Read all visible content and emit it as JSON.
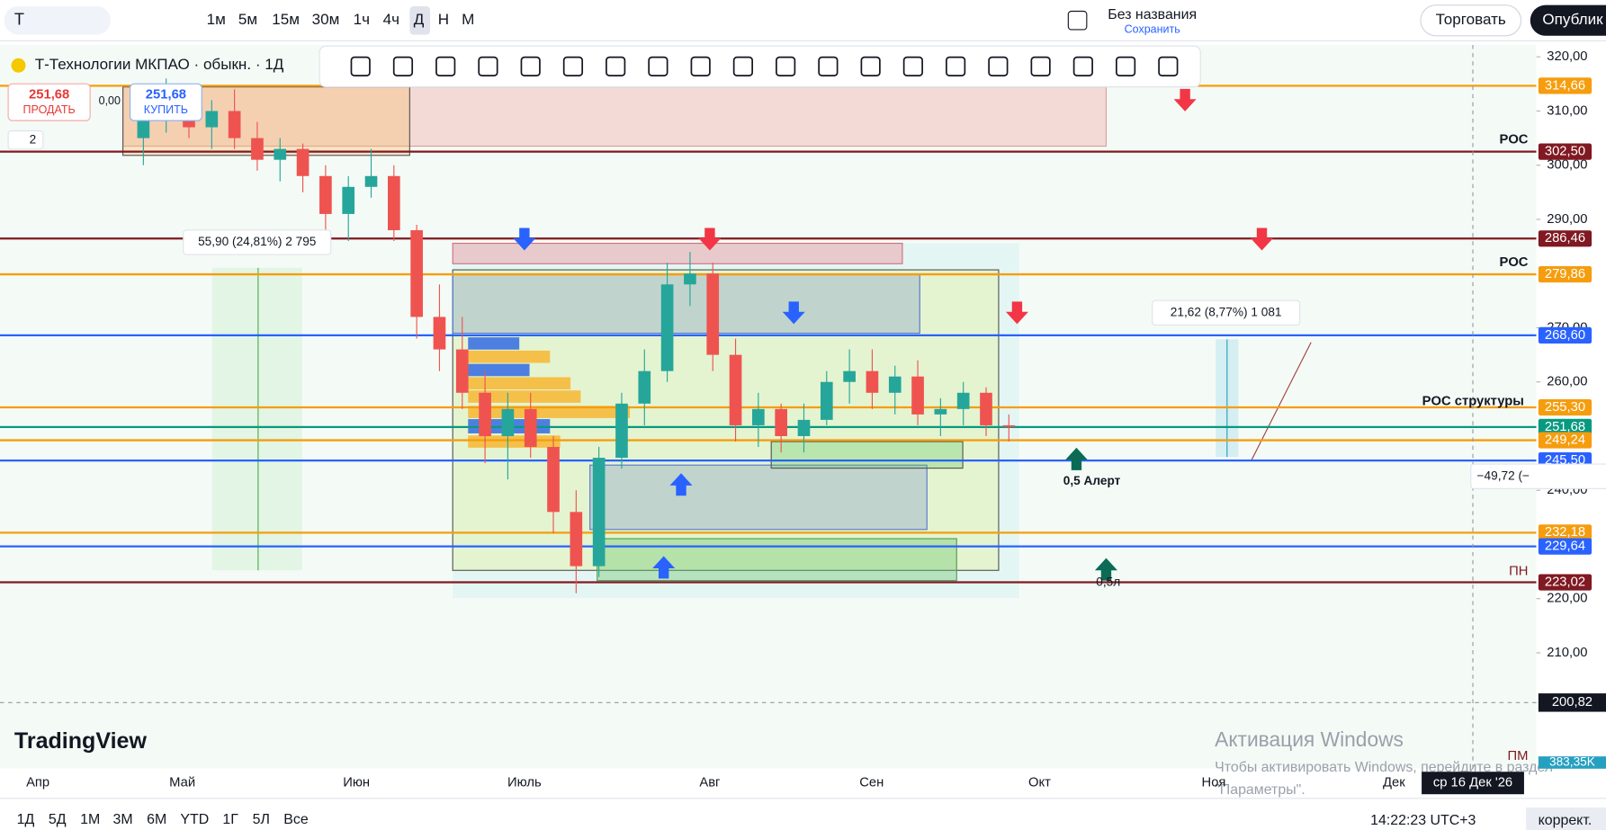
{
  "toolbar": {
    "symbol_search": "Т",
    "intervals": [
      "1м",
      "5м",
      "15м",
      "30м",
      "1ч",
      "4ч",
      "Д",
      "Н",
      "М"
    ],
    "layout_name": "Без названия",
    "save": "Сохранить",
    "trade": "Торговать",
    "publish": "Опублик"
  },
  "legend": {
    "symbol": "Т-Технологии МКПАО · обыкн. · 1Д",
    "sell_price": "251,68",
    "sell": "ПРОДАТЬ",
    "spread": "0,00",
    "buy_price": "251,68",
    "buy": "КУПИТЬ",
    "indicators_count": "2"
  },
  "chart_data": {
    "type": "candlestick",
    "up_color": "#26a69a",
    "down_color": "#ef5350",
    "candles": [
      [
        305,
        312,
        300,
        310
      ],
      [
        310,
        316,
        306,
        313
      ],
      [
        313,
        315,
        305,
        307
      ],
      [
        307,
        312,
        303,
        310
      ],
      [
        310,
        314,
        303,
        305
      ],
      [
        305,
        308,
        299,
        301
      ],
      [
        301,
        305,
        297,
        303
      ],
      [
        303,
        304,
        295,
        298
      ],
      [
        298,
        300,
        288,
        291
      ],
      [
        291,
        298,
        286,
        296
      ],
      [
        296,
        303,
        294,
        298
      ],
      [
        298,
        300,
        286,
        288
      ],
      [
        288,
        289,
        268,
        272
      ],
      [
        272,
        278,
        262,
        266
      ],
      [
        266,
        272,
        255,
        258
      ],
      [
        258,
        262,
        245,
        250
      ],
      [
        250,
        258,
        242,
        255
      ],
      [
        255,
        258,
        246,
        248
      ],
      [
        248,
        250,
        232,
        236
      ],
      [
        236,
        240,
        221,
        226
      ],
      [
        226,
        248,
        224,
        246
      ],
      [
        246,
        258,
        244,
        256
      ],
      [
        256,
        266,
        252,
        262
      ],
      [
        262,
        282,
        260,
        278
      ],
      [
        278,
        284,
        274,
        280
      ],
      [
        280,
        282,
        262,
        265
      ],
      [
        265,
        268,
        249,
        252
      ],
      [
        252,
        258,
        248,
        255
      ],
      [
        255,
        256,
        247,
        250
      ],
      [
        250,
        256,
        247,
        253
      ],
      [
        253,
        262,
        252,
        260
      ],
      [
        260,
        266,
        256,
        262
      ],
      [
        262,
        266,
        255,
        258
      ],
      [
        258,
        263,
        254,
        261
      ],
      [
        261,
        264,
        252,
        254
      ],
      [
        254,
        257,
        250,
        255
      ],
      [
        255,
        260,
        252,
        258
      ],
      [
        258,
        259,
        250,
        252
      ],
      [
        252,
        254,
        249,
        251.68
      ]
    ],
    "ylim": [
      189,
      322
    ],
    "yticks": [
      {
        "value": 320,
        "label": "320,00"
      },
      {
        "value": 310,
        "label": "310,00"
      },
      {
        "value": 300,
        "label": "300,00"
      },
      {
        "value": 290,
        "label": "290,00"
      },
      {
        "value": 270,
        "label": "270,00"
      },
      {
        "value": 260,
        "label": "260,00"
      },
      {
        "value": 240,
        "label": "240,00"
      },
      {
        "value": 220,
        "label": "220,00"
      },
      {
        "value": 210,
        "label": "210,00"
      }
    ],
    "x_labels": [
      "Апр",
      "Май",
      "Июн",
      "Июль",
      "Авг",
      "Сен",
      "Окт",
      "Ноя",
      "Дек"
    ],
    "price_levels": [
      {
        "value": 314.66,
        "label": "314,66",
        "color": "#f59d0e"
      },
      {
        "value": 302.5,
        "label": "302,50",
        "color": "#801922"
      },
      {
        "value": 286.46,
        "label": "286,46",
        "color": "#801922"
      },
      {
        "value": 279.86,
        "label": "279,86",
        "color": "#f59d0e"
      },
      {
        "value": 268.6,
        "label": "268,60",
        "color": "#2962ff"
      },
      {
        "value": 255.3,
        "label": "255,30",
        "color": "#f59d0e"
      },
      {
        "value": 251.68,
        "label": "251,68",
        "color": "#089981"
      },
      {
        "value": 249.24,
        "label": "249,24",
        "color": "#f59d0e"
      },
      {
        "value": 245.5,
        "label": "245,50",
        "color": "#2962ff"
      },
      {
        "value": 232.18,
        "label": "232,18",
        "color": "#f59d0e"
      },
      {
        "value": 229.64,
        "label": "229,64",
        "color": "#2962ff"
      },
      {
        "value": 223.02,
        "label": "223,02",
        "color": "#801922"
      }
    ],
    "crosshair": {
      "value": 200.82,
      "label": "200,82",
      "date": "ср 16 Дек '26"
    },
    "volume_label": "383,35K",
    "annotations": [
      "POC",
      "POC",
      "POC структуры",
      "ПН",
      "ПМ",
      "55,90 (24,81%) 2 795",
      "21,62 (8,77%) 1 081",
      "−49,72 (−",
      "0,5 Алерт",
      "0,5л"
    ]
  },
  "bottom_bar": {
    "ranges": [
      "1Д",
      "5Д",
      "1М",
      "3М",
      "6М",
      "YTD",
      "1Г",
      "5Л",
      "Все"
    ],
    "time": "14:22:23 UTC+3",
    "adjust": "коррект."
  },
  "watermark": {
    "title": "Активация Windows",
    "line1": "Чтобы активировать Windows, перейдите в раздел",
    "line2": "\"Параметры\"."
  },
  "logo": "TradingView"
}
